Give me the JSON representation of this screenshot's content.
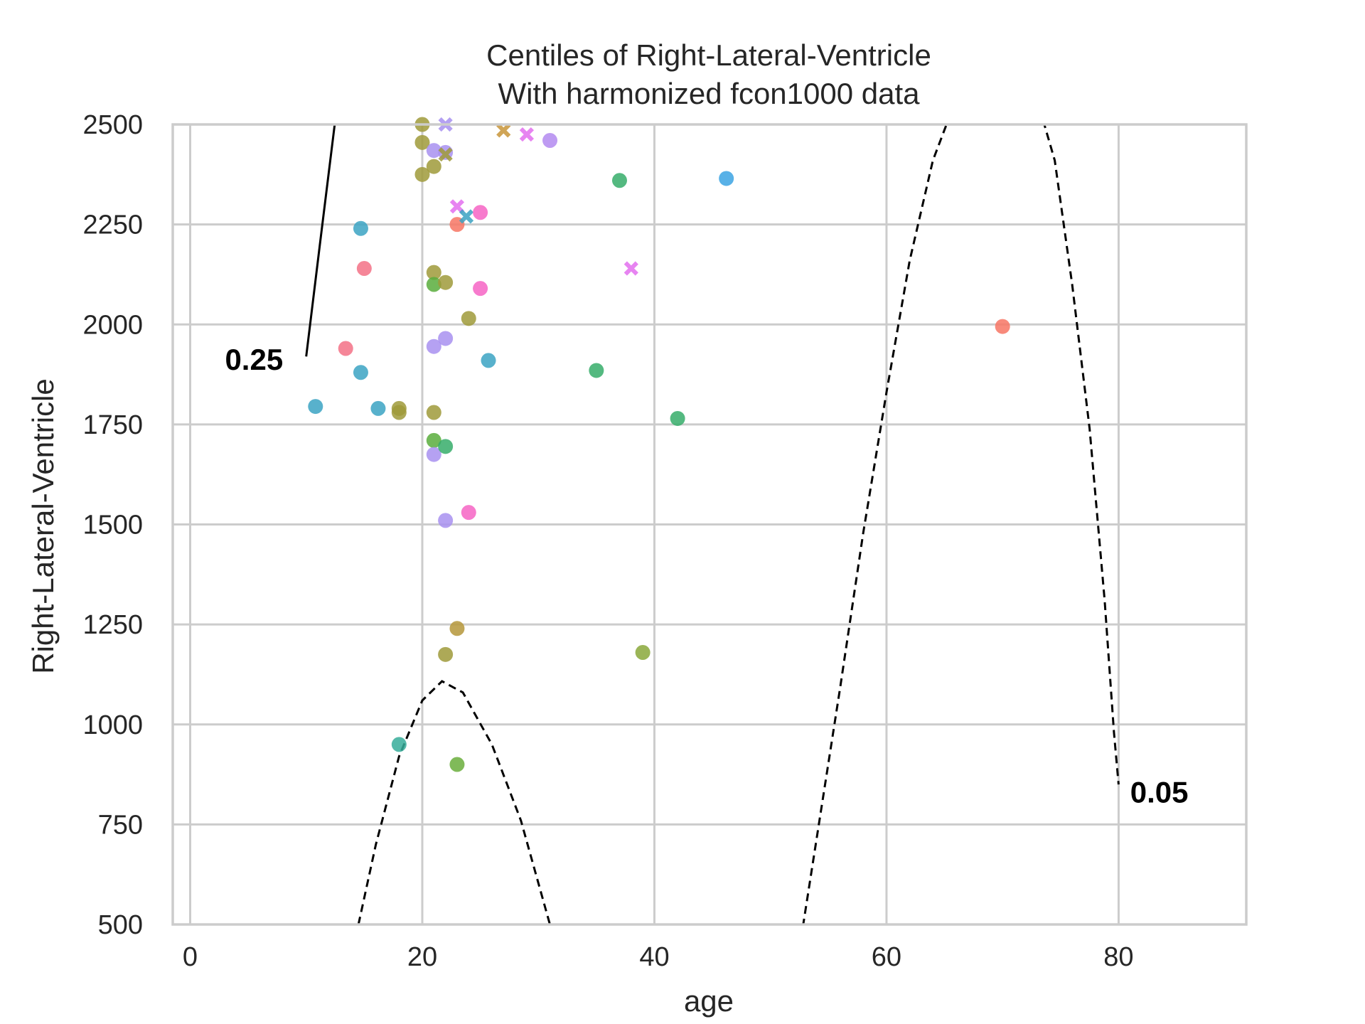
{
  "chart_data": {
    "type": "scatter",
    "title": "Centiles of Right-Lateral-Ventricle",
    "subtitle": "With harmonized fcon1000 data",
    "xlabel": "age",
    "ylabel": "Right-Lateral-Ventricle",
    "xlim": [
      -1.5,
      91
    ],
    "ylim": [
      500,
      2500
    ],
    "x_ticks": [
      0,
      20,
      40,
      60,
      80
    ],
    "y_ticks": [
      500,
      750,
      1000,
      1250,
      1500,
      1750,
      2000,
      2250,
      2500
    ],
    "grid": true,
    "legend": "none",
    "colors": {
      "grid": "#cccccc",
      "axes": "#cccccc",
      "centile_line": "#000000"
    },
    "centile_lines": [
      {
        "label": "0.25",
        "style": "solid",
        "points": [
          [
            10,
            1920
          ],
          [
            11.2,
            2205
          ],
          [
            12.5,
            2510
          ]
        ],
        "label_at": [
          3.0,
          1912
        ]
      },
      {
        "label": "0.05",
        "style": "dashed",
        "points": [
          [
            14.5,
            500
          ],
          [
            16,
            700
          ],
          [
            18,
            920
          ],
          [
            20,
            1060
          ],
          [
            21.7,
            1108
          ],
          [
            23.5,
            1080
          ],
          [
            26,
            950
          ],
          [
            28.5,
            760
          ],
          [
            31,
            500
          ],
          [
            31.05,
            490
          ]
        ],
        "label_at": [
          81,
          830
        ]
      },
      {
        "label": "",
        "style": "dashed",
        "points": [
          [
            52.8,
            495
          ],
          [
            56,
            1090
          ],
          [
            58,
            1480
          ],
          [
            60,
            1830
          ],
          [
            62,
            2160
          ],
          [
            64,
            2410
          ],
          [
            65.3,
            2510
          ]
        ]
      },
      {
        "label": "",
        "style": "dashed",
        "points": [
          [
            73.5,
            2510
          ],
          [
            74.5,
            2410
          ],
          [
            76,
            2100
          ],
          [
            77.5,
            1740
          ],
          [
            78.8,
            1310
          ],
          [
            79.6,
            980
          ],
          [
            80,
            850
          ]
        ]
      }
    ],
    "points": [
      {
        "x": 10.8,
        "y": 1795,
        "color": "#3ba3c3",
        "marker": "o"
      },
      {
        "x": 13.4,
        "y": 1940,
        "color": "#f37186",
        "marker": "o"
      },
      {
        "x": 14.7,
        "y": 2240,
        "color": "#3ba3c3",
        "marker": "o"
      },
      {
        "x": 14.7,
        "y": 1880,
        "color": "#3ba3c3",
        "marker": "o"
      },
      {
        "x": 15.0,
        "y": 2140,
        "color": "#f37186",
        "marker": "o"
      },
      {
        "x": 16.2,
        "y": 1790,
        "color": "#3ba3c3",
        "marker": "o"
      },
      {
        "x": 18.0,
        "y": 1790,
        "color": "#9f9a3a",
        "marker": "o"
      },
      {
        "x": 18.0,
        "y": 1780,
        "color": "#9f9a3a",
        "marker": "o"
      },
      {
        "x": 18.0,
        "y": 950,
        "color": "#36ad9a",
        "marker": "o"
      },
      {
        "x": 20.0,
        "y": 2500,
        "color": "#9f9a3a",
        "marker": "o"
      },
      {
        "x": 20.0,
        "y": 2455,
        "color": "#9f9a3a",
        "marker": "o"
      },
      {
        "x": 20.0,
        "y": 2375,
        "color": "#9f9a3a",
        "marker": "o"
      },
      {
        "x": 21.0,
        "y": 2435,
        "color": "#a890f0",
        "marker": "o"
      },
      {
        "x": 21.0,
        "y": 2395,
        "color": "#9f9a3a",
        "marker": "o"
      },
      {
        "x": 21.0,
        "y": 2130,
        "color": "#9f9a3a",
        "marker": "o"
      },
      {
        "x": 21.0,
        "y": 2100,
        "color": "#59ad3c",
        "marker": "o"
      },
      {
        "x": 21.0,
        "y": 1945,
        "color": "#a890f0",
        "marker": "o"
      },
      {
        "x": 21.0,
        "y": 1780,
        "color": "#9f9a3a",
        "marker": "o"
      },
      {
        "x": 21.0,
        "y": 1710,
        "color": "#59ad3c",
        "marker": "o"
      },
      {
        "x": 21.0,
        "y": 1675,
        "color": "#a890f0",
        "marker": "o"
      },
      {
        "x": 22.0,
        "y": 2500,
        "color": "#a890f0",
        "marker": "x"
      },
      {
        "x": 22.0,
        "y": 2430,
        "color": "#a890f0",
        "marker": "o"
      },
      {
        "x": 22.0,
        "y": 2425,
        "color": "#9f9a3a",
        "marker": "x"
      },
      {
        "x": 22.0,
        "y": 2105,
        "color": "#9f9a3a",
        "marker": "o"
      },
      {
        "x": 22.0,
        "y": 1965,
        "color": "#a890f0",
        "marker": "o"
      },
      {
        "x": 22.0,
        "y": 1695,
        "color": "#36ad6a",
        "marker": "o"
      },
      {
        "x": 22.0,
        "y": 1510,
        "color": "#a890f0",
        "marker": "o"
      },
      {
        "x": 22.0,
        "y": 1175,
        "color": "#9f9a3a",
        "marker": "o"
      },
      {
        "x": 23.0,
        "y": 2295,
        "color": "#e36fef",
        "marker": "x"
      },
      {
        "x": 23.0,
        "y": 2250,
        "color": "#f77564",
        "marker": "o"
      },
      {
        "x": 23.0,
        "y": 1240,
        "color": "#b5963a",
        "marker": "o"
      },
      {
        "x": 23.0,
        "y": 900,
        "color": "#6aae3c",
        "marker": "o"
      },
      {
        "x": 23.8,
        "y": 2270,
        "color": "#3ba3c3",
        "marker": "x"
      },
      {
        "x": 24.0,
        "y": 2015,
        "color": "#9f9a3a",
        "marker": "o"
      },
      {
        "x": 24.0,
        "y": 1530,
        "color": "#f664c4",
        "marker": "o"
      },
      {
        "x": 25.0,
        "y": 2280,
        "color": "#f664c4",
        "marker": "o"
      },
      {
        "x": 25.0,
        "y": 2090,
        "color": "#f664c4",
        "marker": "o"
      },
      {
        "x": 25.7,
        "y": 1910,
        "color": "#3ba3c3",
        "marker": "o"
      },
      {
        "x": 27.0,
        "y": 2485,
        "color": "#c8963a",
        "marker": "x"
      },
      {
        "x": 29.0,
        "y": 2475,
        "color": "#e36fef",
        "marker": "x"
      },
      {
        "x": 31.0,
        "y": 2460,
        "color": "#b38af0",
        "marker": "o"
      },
      {
        "x": 35.0,
        "y": 1885,
        "color": "#36ad6a",
        "marker": "o"
      },
      {
        "x": 37.0,
        "y": 2360,
        "color": "#36ad6a",
        "marker": "o"
      },
      {
        "x": 38.0,
        "y": 2140,
        "color": "#e36fef",
        "marker": "x"
      },
      {
        "x": 39.0,
        "y": 1180,
        "color": "#8aa83a",
        "marker": "o"
      },
      {
        "x": 42.0,
        "y": 1765,
        "color": "#36ad6a",
        "marker": "o"
      },
      {
        "x": 46.2,
        "y": 2365,
        "color": "#3ba3e3",
        "marker": "o"
      },
      {
        "x": 70.0,
        "y": 1995,
        "color": "#f77564",
        "marker": "o"
      }
    ]
  }
}
